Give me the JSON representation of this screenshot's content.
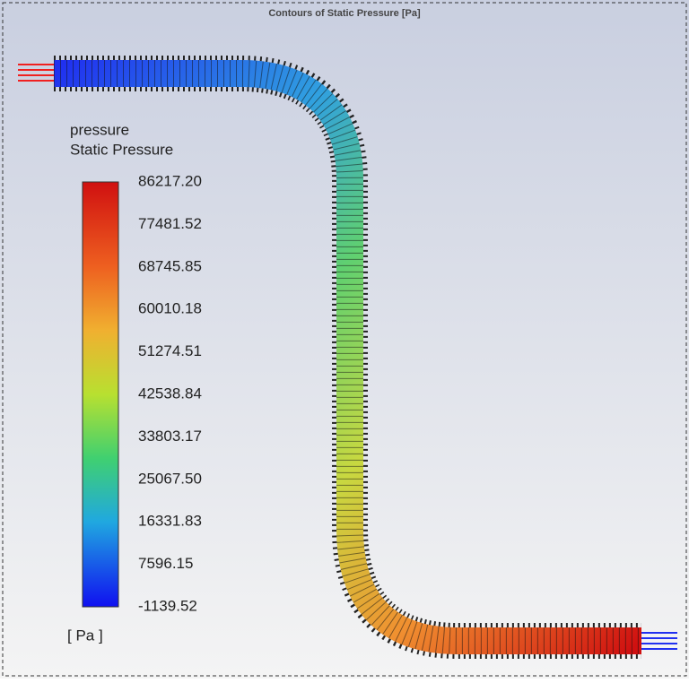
{
  "title": "Contours of Static Pressure [Pa]",
  "legend": {
    "title_lines": [
      "pressure",
      "Static Pressure"
    ],
    "ticks": [
      "86217.20",
      "77481.52",
      "68745.85",
      "60010.18",
      "51274.51",
      "42538.84",
      "33803.17",
      "25067.50",
      "16331.83",
      "7596.15",
      "-1139.52"
    ],
    "unit": "[ Pa ]"
  }
}
